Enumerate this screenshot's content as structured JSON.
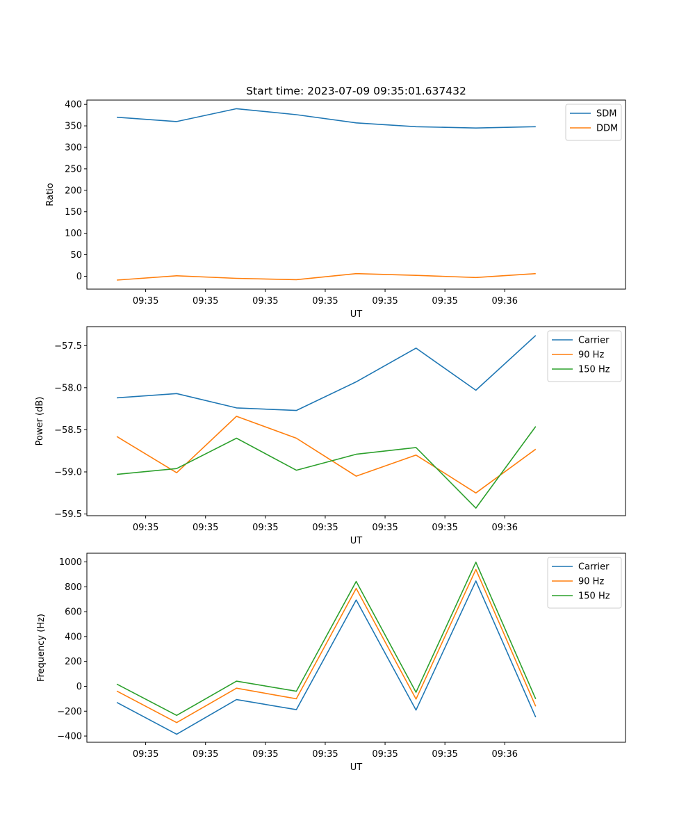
{
  "title": "Start time: 2023-07-09 09:35:01.637432",
  "chart_data": [
    {
      "type": "line",
      "xlabel": "UT",
      "ylabel": "Ratio",
      "x_ticks": [
        "09:35",
        "09:35",
        "09:35",
        "09:35",
        "09:35",
        "09:35",
        "09:36"
      ],
      "xlim": [
        0,
        9
      ],
      "ylim": [
        -30,
        410
      ],
      "yticks": [
        0,
        50,
        100,
        150,
        200,
        250,
        300,
        350,
        400
      ],
      "ytick_labels": [
        "0",
        "50",
        "100",
        "150",
        "200",
        "250",
        "300",
        "350",
        "400"
      ],
      "legend": "top-right",
      "x": [
        0.5,
        1.5,
        2.5,
        3.5,
        4.5,
        5.5,
        6.5,
        7.5
      ],
      "series": [
        {
          "name": "SDM",
          "color": "#1f77b4",
          "values": [
            370,
            360,
            390,
            376,
            357,
            348,
            345,
            348
          ]
        },
        {
          "name": "DDM",
          "color": "#ff7f0e",
          "values": [
            -9,
            1,
            -5,
            -8,
            6,
            2,
            -3,
            6
          ]
        }
      ]
    },
    {
      "type": "line",
      "xlabel": "UT",
      "ylabel": "Power (dB)",
      "x_ticks": [
        "09:35",
        "09:35",
        "09:35",
        "09:35",
        "09:35",
        "09:35",
        "09:36"
      ],
      "xlim": [
        0,
        9
      ],
      "ylim": [
        -59.52,
        -57.275
      ],
      "yticks": [
        -57.5,
        -58.0,
        -58.5,
        -59.0,
        -59.5
      ],
      "ytick_labels": [
        "−57.5",
        "−58.0",
        "−58.5",
        "−59.0",
        "−59.5"
      ],
      "legend": "top-right",
      "x": [
        0.5,
        1.5,
        2.5,
        3.5,
        4.5,
        5.5,
        6.5,
        7.5
      ],
      "series": [
        {
          "name": "Carrier",
          "color": "#1f77b4",
          "values": [
            -58.12,
            -58.07,
            -58.24,
            -58.27,
            -57.93,
            -57.53,
            -58.03,
            -57.38
          ]
        },
        {
          "name": "90 Hz",
          "color": "#ff7f0e",
          "values": [
            -58.58,
            -59.01,
            -58.34,
            -58.6,
            -59.05,
            -58.8,
            -59.25,
            -58.73
          ]
        },
        {
          "name": "150 Hz",
          "color": "#2ca02c",
          "values": [
            -59.03,
            -58.96,
            -58.6,
            -58.98,
            -58.79,
            -58.71,
            -59.43,
            -58.46
          ]
        }
      ]
    },
    {
      "type": "line",
      "xlabel": "UT",
      "ylabel": "Frequency (Hz)",
      "x_ticks": [
        "09:35",
        "09:35",
        "09:35",
        "09:35",
        "09:35",
        "09:35",
        "09:36"
      ],
      "xlim": [
        0,
        9
      ],
      "ylim": [
        -450,
        1070
      ],
      "yticks": [
        -400,
        -200,
        0,
        200,
        400,
        600,
        800,
        1000
      ],
      "ytick_labels": [
        "−400",
        "−200",
        "0",
        "200",
        "400",
        "600",
        "800",
        "1000"
      ],
      "legend": "top-right",
      "x": [
        0.5,
        1.5,
        2.5,
        3.5,
        4.5,
        5.5,
        6.5,
        7.5
      ],
      "series": [
        {
          "name": "Carrier",
          "color": "#1f77b4",
          "values": [
            -130,
            -385,
            -107,
            -188,
            694,
            -191,
            847,
            -248
          ]
        },
        {
          "name": "90 Hz",
          "color": "#ff7f0e",
          "values": [
            -38,
            -292,
            -15,
            -100,
            787,
            -103,
            939,
            -161
          ]
        },
        {
          "name": "150 Hz",
          "color": "#2ca02c",
          "values": [
            18,
            -234,
            41,
            -40,
            843,
            -48,
            998,
            -102
          ]
        }
      ]
    }
  ]
}
